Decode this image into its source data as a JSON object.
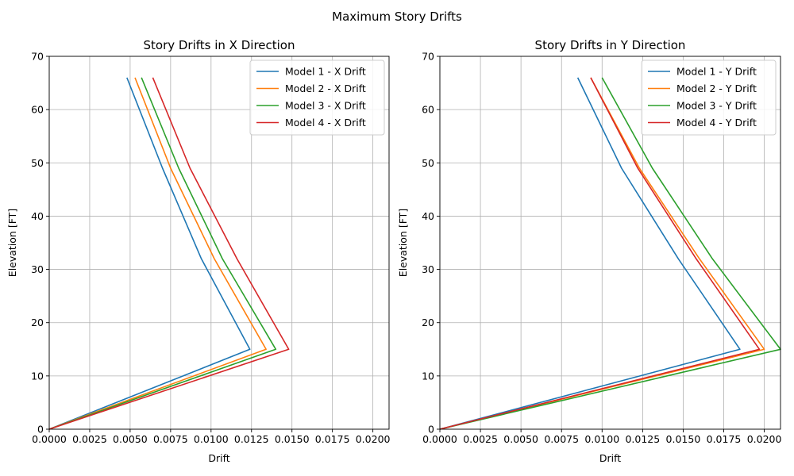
{
  "figure": {
    "suptitle": "Maximum Story Drifts"
  },
  "chart_data": [
    {
      "type": "line",
      "title": "Story Drifts in X Direction",
      "xlabel": "Drift",
      "ylabel": "Elevation [FT]",
      "xlim": [
        0,
        0.021
      ],
      "ylim": [
        0,
        70
      ],
      "xticks": [
        "0.0000",
        "0.0025",
        "0.0050",
        "0.0075",
        "0.0100",
        "0.0125",
        "0.0150",
        "0.0175",
        "0.0200"
      ],
      "yticks": [
        "0",
        "10",
        "20",
        "30",
        "40",
        "50",
        "60",
        "70"
      ],
      "grid": true,
      "legend_position": "top-right",
      "series": [
        {
          "name": "Model 1 - X Drift",
          "color": "#1f77b4",
          "points": [
            [
              0,
              0
            ],
            [
              0.0124,
              15
            ],
            [
              0.0094,
              32
            ],
            [
              0.007,
              49
            ],
            [
              0.0048,
              66
            ]
          ]
        },
        {
          "name": "Model 2 - X Drift",
          "color": "#ff7f0e",
          "points": [
            [
              0,
              0
            ],
            [
              0.0134,
              15
            ],
            [
              0.0102,
              32
            ],
            [
              0.0075,
              49
            ],
            [
              0.0053,
              66
            ]
          ]
        },
        {
          "name": "Model 3 - X Drift",
          "color": "#2ca02c",
          "points": [
            [
              0,
              0
            ],
            [
              0.014,
              15
            ],
            [
              0.0107,
              32
            ],
            [
              0.008,
              49
            ],
            [
              0.0057,
              66
            ]
          ]
        },
        {
          "name": "Model 4 - X Drift",
          "color": "#d62728",
          "points": [
            [
              0,
              0
            ],
            [
              0.0148,
              15
            ],
            [
              0.0116,
              32
            ],
            [
              0.0087,
              49
            ],
            [
              0.0064,
              66
            ]
          ]
        }
      ]
    },
    {
      "type": "line",
      "title": "Story Drifts in Y Direction",
      "xlabel": "Drift",
      "ylabel": "Elevation [FT]",
      "xlim": [
        0,
        0.021
      ],
      "ylim": [
        0,
        70
      ],
      "xticks": [
        "0.0000",
        "0.0025",
        "0.0050",
        "0.0075",
        "0.0100",
        "0.0125",
        "0.0150",
        "0.0175",
        "0.0200"
      ],
      "yticks": [
        "0",
        "10",
        "20",
        "30",
        "40",
        "50",
        "60",
        "70"
      ],
      "grid": true,
      "legend_position": "top-right",
      "series": [
        {
          "name": "Model 1 - Y Drift",
          "color": "#1f77b4",
          "points": [
            [
              0,
              0
            ],
            [
              0.0185,
              15
            ],
            [
              0.0147,
              32
            ],
            [
              0.0112,
              49
            ],
            [
              0.0085,
              66
            ]
          ]
        },
        {
          "name": "Model 2 - Y Drift",
          "color": "#ff7f0e",
          "points": [
            [
              0,
              0
            ],
            [
              0.02,
              15
            ],
            [
              0.016,
              32
            ],
            [
              0.0123,
              49
            ],
            [
              0.0093,
              66
            ]
          ]
        },
        {
          "name": "Model 3 - Y Drift",
          "color": "#2ca02c",
          "points": [
            [
              0,
              0
            ],
            [
              0.021,
              15
            ],
            [
              0.0168,
              32
            ],
            [
              0.0131,
              49
            ],
            [
              0.01,
              66
            ]
          ]
        },
        {
          "name": "Model 4 - Y Drift",
          "color": "#d62728",
          "points": [
            [
              0,
              0
            ],
            [
              0.0197,
              15
            ],
            [
              0.0158,
              32
            ],
            [
              0.0122,
              49
            ],
            [
              0.0093,
              66
            ]
          ]
        }
      ]
    }
  ]
}
